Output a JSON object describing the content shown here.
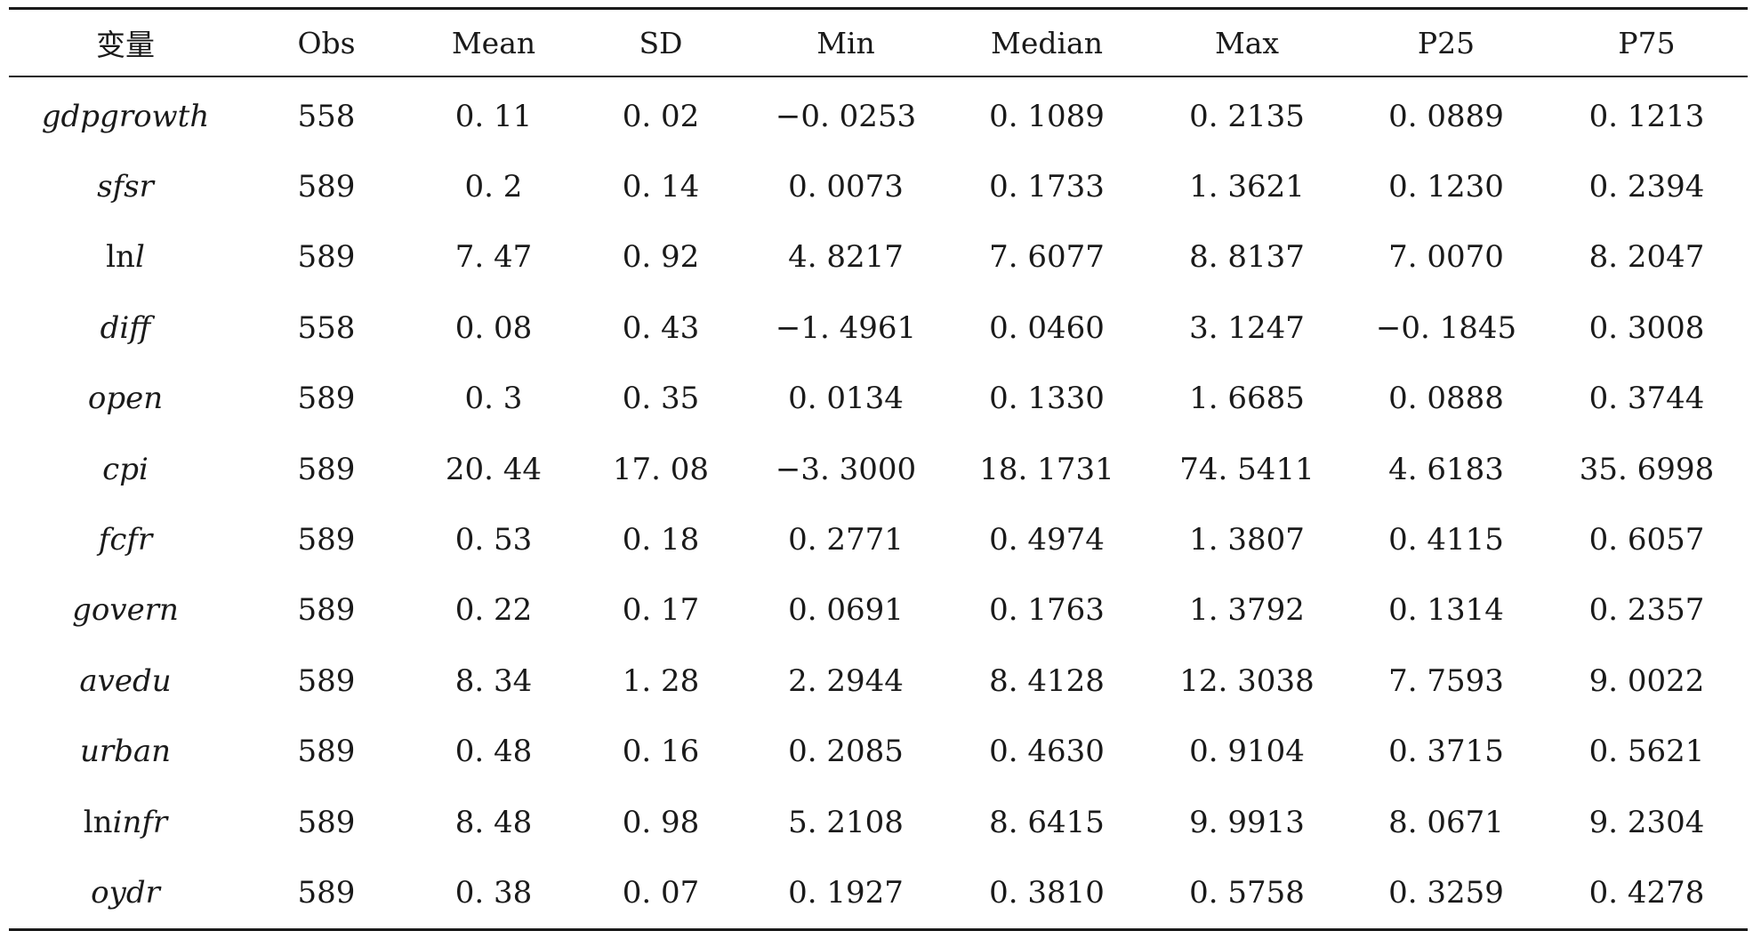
{
  "table": {
    "headers": [
      "变量",
      "Obs",
      "Mean",
      "SD",
      "Min",
      "Median",
      "Max",
      "P25",
      "P75"
    ],
    "rows": [
      {
        "var_prefix": "",
        "var_italic": "gdpgrowth",
        "cells": [
          "558",
          "0. 11",
          "0. 02",
          "−0. 0253",
          "0. 1089",
          "0. 2135",
          "0. 0889",
          "0. 1213"
        ]
      },
      {
        "var_prefix": "",
        "var_italic": "sfsr",
        "cells": [
          "589",
          "0. 2",
          "0. 14",
          "0. 0073",
          "0. 1733",
          "1. 3621",
          "0. 1230",
          "0. 2394"
        ]
      },
      {
        "var_prefix": "ln",
        "var_italic": "l",
        "cells": [
          "589",
          "7. 47",
          "0. 92",
          "4. 8217",
          "7. 6077",
          "8. 8137",
          "7. 0070",
          "8. 2047"
        ]
      },
      {
        "var_prefix": "",
        "var_italic": "diff",
        "cells": [
          "558",
          "0. 08",
          "0. 43",
          "−1. 4961",
          "0. 0460",
          "3. 1247",
          "−0. 1845",
          "0. 3008"
        ]
      },
      {
        "var_prefix": "",
        "var_italic": "open",
        "cells": [
          "589",
          "0. 3",
          "0. 35",
          "0. 0134",
          "0. 1330",
          "1. 6685",
          "0. 0888",
          "0. 3744"
        ]
      },
      {
        "var_prefix": "",
        "var_italic": "cpi",
        "cells": [
          "589",
          "20. 44",
          "17. 08",
          "−3. 3000",
          "18. 1731",
          "74. 5411",
          "4. 6183",
          "35. 6998"
        ]
      },
      {
        "var_prefix": "",
        "var_italic": "fcfr",
        "cells": [
          "589",
          "0. 53",
          "0. 18",
          "0. 2771",
          "0. 4974",
          "1. 3807",
          "0. 4115",
          "0. 6057"
        ]
      },
      {
        "var_prefix": "",
        "var_italic": "govern",
        "cells": [
          "589",
          "0. 22",
          "0. 17",
          "0. 0691",
          "0. 1763",
          "1. 3792",
          "0. 1314",
          "0. 2357"
        ]
      },
      {
        "var_prefix": "",
        "var_italic": "avedu",
        "cells": [
          "589",
          "8. 34",
          "1. 28",
          "2. 2944",
          "8. 4128",
          "12. 3038",
          "7. 7593",
          "9. 0022"
        ]
      },
      {
        "var_prefix": "",
        "var_italic": "urban",
        "cells": [
          "589",
          "0. 48",
          "0. 16",
          "0. 2085",
          "0. 4630",
          "0. 9104",
          "0. 3715",
          "0. 5621"
        ]
      },
      {
        "var_prefix": "ln",
        "var_italic": "infr",
        "cells": [
          "589",
          "8. 48",
          "0. 98",
          "5. 2108",
          "8. 6415",
          "9. 9913",
          "8. 0671",
          "9. 2304"
        ]
      },
      {
        "var_prefix": "",
        "var_italic": "oydr",
        "cells": [
          "589",
          "0. 38",
          "0. 07",
          "0. 1927",
          "0. 3810",
          "0. 5758",
          "0. 3259",
          "0. 4278"
        ]
      }
    ]
  }
}
